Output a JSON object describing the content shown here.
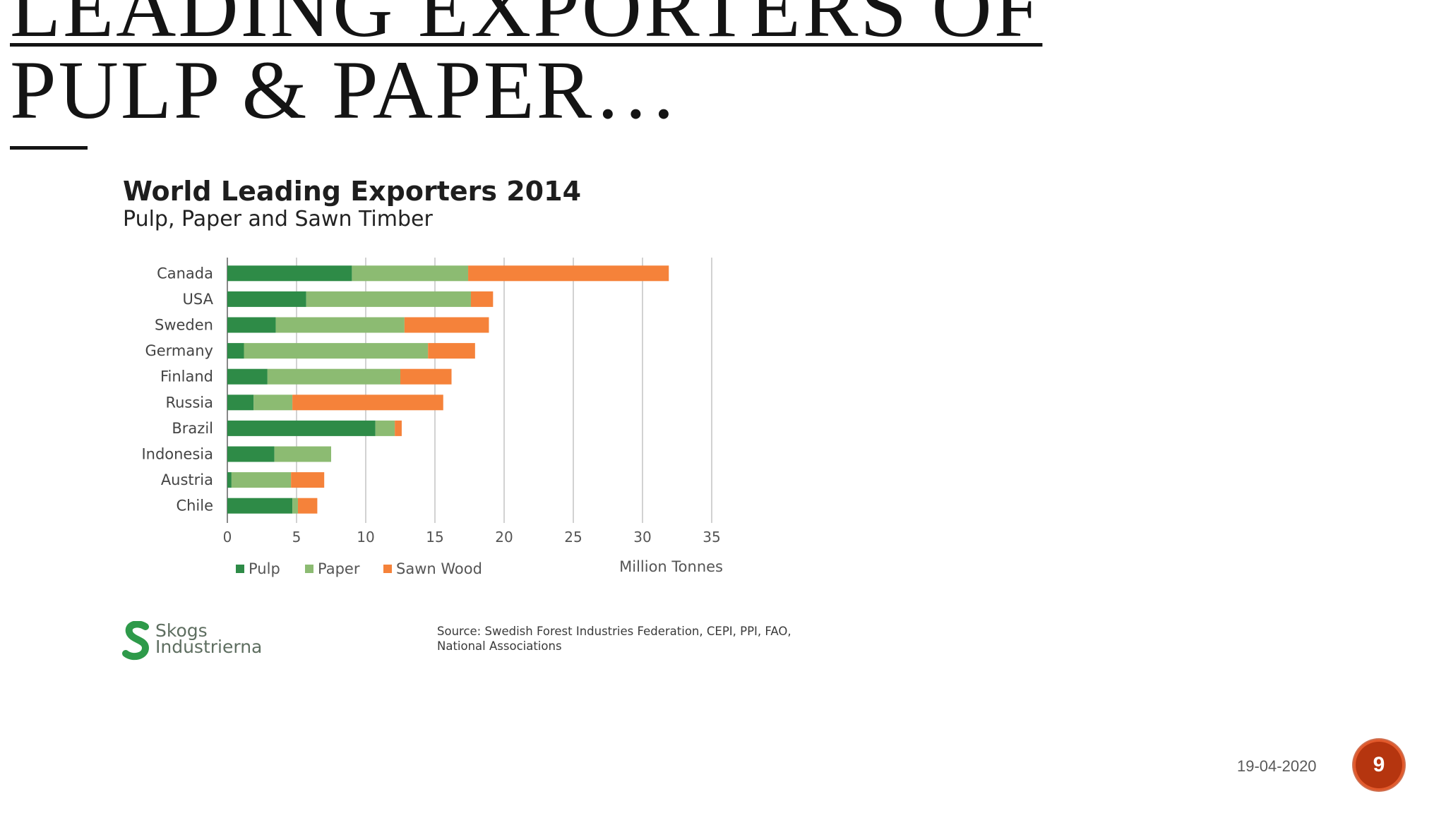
{
  "slide": {
    "title_lines": [
      "Leading exporters of",
      "pulp & paper…"
    ],
    "date": "19-04-2020",
    "page_number": "9"
  },
  "logo": {
    "text_lines": [
      "Skogs",
      "Industrierna"
    ],
    "colors": {
      "mark": "#2e9a4a"
    }
  },
  "source_note": {
    "lines": [
      "Source: Swedish Forest Industries Federation, CEPI, PPI, FAO,",
      "National Associations"
    ]
  },
  "chart_data": {
    "type": "bar",
    "orientation": "horizontal",
    "stacked": true,
    "title": "World Leading Exporters 2014",
    "subtitle": "Pulp, Paper and Sawn Timber",
    "categories": [
      "Canada",
      "USA",
      "Sweden",
      "Germany",
      "Finland",
      "Russia",
      "Brazil",
      "Indonesia",
      "Austria",
      "Chile"
    ],
    "series": [
      {
        "name": "Pulp",
        "color": "#2e8b47",
        "values": [
          9.0,
          5.7,
          3.5,
          1.2,
          2.9,
          1.9,
          10.7,
          3.4,
          0.3,
          4.7
        ]
      },
      {
        "name": "Paper",
        "color": "#8cbb72",
        "values": [
          8.4,
          11.9,
          9.3,
          13.3,
          9.6,
          2.8,
          1.4,
          4.1,
          4.3,
          0.4
        ]
      },
      {
        "name": "Sawn Wood",
        "color": "#f5823a",
        "values": [
          14.5,
          1.6,
          6.1,
          3.4,
          3.7,
          10.9,
          0.5,
          0,
          2.4,
          1.4
        ]
      }
    ],
    "xlabel": "Million Tonnes",
    "xlim": [
      0,
      35
    ],
    "xticks": [
      "0",
      "5",
      "10",
      "15",
      "20",
      "25",
      "30",
      "35"
    ],
    "grid": "vertical",
    "legend_position": "bottom-left"
  }
}
